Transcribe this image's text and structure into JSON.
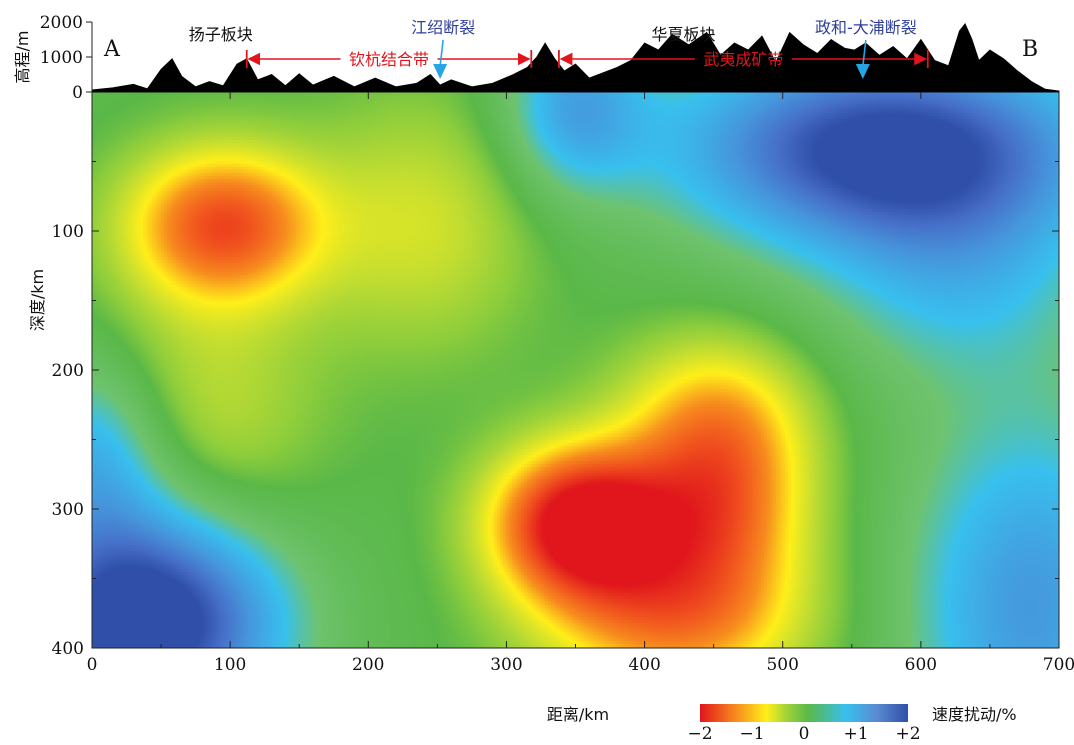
{
  "chart_data": {
    "type": "heatmap",
    "title": "",
    "xlabel": "距离/km",
    "ylabel": "深度/km",
    "top_ylabel": "高程/m",
    "colorbar_label": "速度扰动/%",
    "xlim": [
      0,
      700
    ],
    "ylim": [
      400,
      0
    ],
    "elev_lim": [
      0,
      2000
    ],
    "x_ticks": [
      0,
      100,
      200,
      300,
      400,
      500,
      600,
      700
    ],
    "y_ticks": [
      100,
      200,
      300,
      400
    ],
    "elev_ticks": [
      0,
      1000,
      2000
    ],
    "colorbar_ticks": [
      "−2",
      "−1",
      "0",
      "+1",
      "+2"
    ],
    "colorbar_range": [
      -2,
      2
    ],
    "colors": {
      "scale": [
        "#e0161c",
        "#f57c1e",
        "#ffef1a",
        "#9dd13a",
        "#5ab848",
        "#38c0ee",
        "#5a8ad0",
        "#2f4fa8"
      ],
      "red_label": "#e0161c",
      "blue_label": "#2e3f9a",
      "arrow_blue": "#27a4e6"
    },
    "end_labels": {
      "left": "A",
      "right": "B"
    },
    "blocks": [
      {
        "name": "扬子板块",
        "x_km": 70
      },
      {
        "name": "华夏板块",
        "x_km": 405
      }
    ],
    "zones": [
      {
        "name": "钦杭结合带",
        "x_start": 112,
        "x_end": 318
      },
      {
        "name": "武夷成矿带",
        "x_start": 338,
        "x_end": 605
      }
    ],
    "faults": [
      {
        "name": "江绍断裂",
        "x_km": 252
      },
      {
        "name": "政和-大浦断裂",
        "x_km": 558
      }
    ],
    "elevation_profile": {
      "x": [
        0,
        15,
        30,
        40,
        50,
        58,
        65,
        75,
        85,
        95,
        105,
        112,
        120,
        130,
        140,
        150,
        160,
        175,
        190,
        205,
        220,
        235,
        245,
        252,
        260,
        275,
        290,
        305,
        315,
        322,
        328,
        335,
        342,
        350,
        360,
        370,
        380,
        390,
        400,
        410,
        420,
        432,
        445,
        455,
        465,
        475,
        485,
        495,
        505,
        515,
        525,
        535,
        545,
        552,
        560,
        570,
        580,
        590,
        600,
        610,
        620,
        628,
        632,
        637,
        642,
        650,
        660,
        670,
        680,
        690,
        700
      ],
      "y": [
        60,
        120,
        220,
        90,
        650,
        950,
        450,
        150,
        300,
        180,
        800,
        950,
        350,
        500,
        180,
        520,
        200,
        450,
        150,
        400,
        150,
        250,
        500,
        200,
        350,
        150,
        250,
        500,
        700,
        1000,
        1400,
        950,
        600,
        800,
        400,
        550,
        700,
        900,
        1400,
        1200,
        1650,
        1350,
        1700,
        1050,
        1400,
        1200,
        1600,
        850,
        1700,
        1350,
        1100,
        1500,
        1250,
        1200,
        1400,
        1050,
        1300,
        950,
        1500,
        900,
        750,
        1750,
        1950,
        1500,
        900,
        1200,
        950,
        600,
        300,
        80,
        30
      ]
    },
    "anomaly_sources": [
      {
        "x_km": 95,
        "depth_km": 95,
        "value": -1.6,
        "sx": 70,
        "sz": 55
      },
      {
        "x_km": 85,
        "depth_km": 230,
        "value": -0.5,
        "sx": 80,
        "sz": 110
      },
      {
        "x_km": 240,
        "depth_km": 95,
        "value": -0.6,
        "sx": 80,
        "sz": 90
      },
      {
        "x_km": 355,
        "depth_km": 310,
        "value": -2.3,
        "sx": 65,
        "sz": 55
      },
      {
        "x_km": 455,
        "depth_km": 290,
        "value": -1.4,
        "sx": 65,
        "sz": 75
      },
      {
        "x_km": 420,
        "depth_km": 380,
        "value": -1.2,
        "sx": 95,
        "sz": 60
      },
      {
        "x_km": 450,
        "depth_km": 225,
        "value": -0.6,
        "sx": 70,
        "sz": 55
      },
      {
        "x_km": 575,
        "depth_km": 40,
        "value": 2.1,
        "sx": 150,
        "sz": 70
      },
      {
        "x_km": 350,
        "depth_km": 10,
        "value": 1.0,
        "sx": 50,
        "sz": 60
      },
      {
        "x_km": 625,
        "depth_km": 130,
        "value": 0.7,
        "sx": 100,
        "sz": 80
      },
      {
        "x_km": 40,
        "depth_km": 380,
        "value": 2.4,
        "sx": 95,
        "sz": 80
      },
      {
        "x_km": 0,
        "depth_km": 260,
        "value": 0.9,
        "sx": 55,
        "sz": 70
      },
      {
        "x_km": 680,
        "depth_km": 370,
        "value": 1.2,
        "sx": 90,
        "sz": 140
      }
    ]
  }
}
